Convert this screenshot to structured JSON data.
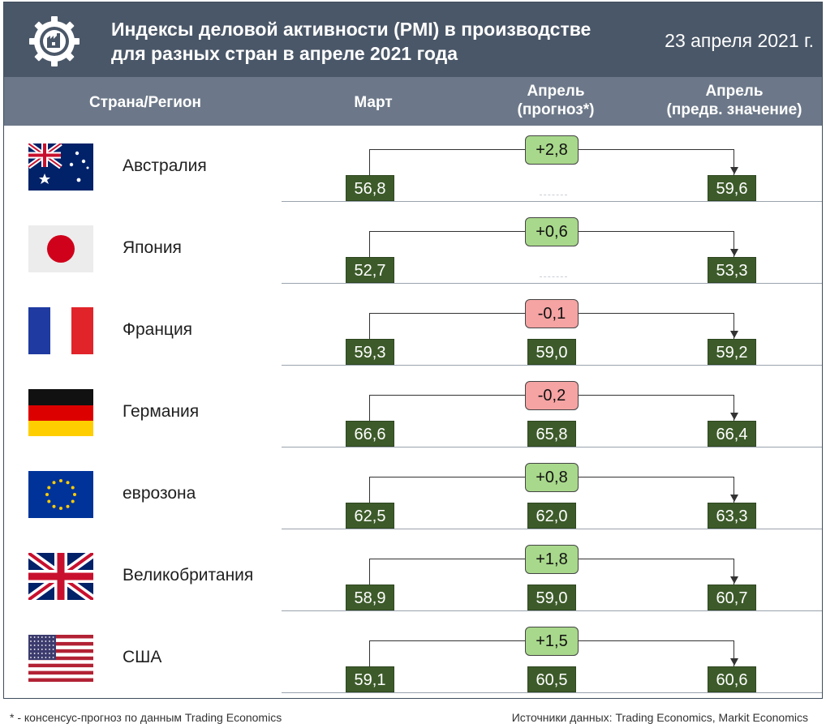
{
  "header": {
    "title_line1": "Индексы деловой активности (PMI) в производстве",
    "title_line2": "для разных стран в апреле 2021 года",
    "date": "23 апреля 2021 г."
  },
  "columns": {
    "country": "Страна/Регион",
    "march": "Март",
    "forecast_line1": "Апрель",
    "forecast_line2": "(прогноз*)",
    "april_line1": "Апрель",
    "april_line2": "(предв. значение)"
  },
  "colors": {
    "header_bg": "#4a5768",
    "colhead_bg": "#6c7889",
    "value_bg": "#3d5b2a",
    "delta_positive": "#a8d88b",
    "delta_negative": "#f5a3a3"
  },
  "chart_data": {
    "type": "table",
    "title": "Индексы деловой активности (PMI) в производстве для разных стран в апреле 2021 года",
    "rows": [
      {
        "country": "Австралия",
        "flag": "australia-flag",
        "march": "56,8",
        "forecast": "",
        "april": "59,6",
        "delta": "+2,8",
        "sign": "pos"
      },
      {
        "country": "Япония",
        "flag": "japan-flag",
        "march": "52,7",
        "forecast": "",
        "april": "53,3",
        "delta": "+0,6",
        "sign": "pos"
      },
      {
        "country": "Франция",
        "flag": "france-flag",
        "march": "59,3",
        "forecast": "59,0",
        "april": "59,2",
        "delta": "-0,1",
        "sign": "neg"
      },
      {
        "country": "Германия",
        "flag": "germany-flag",
        "march": "66,6",
        "forecast": "65,8",
        "april": "66,4",
        "delta": "-0,2",
        "sign": "neg"
      },
      {
        "country": "еврозона",
        "flag": "eu-flag",
        "march": "62,5",
        "forecast": "62,0",
        "april": "63,3",
        "delta": "+0,8",
        "sign": "pos"
      },
      {
        "country": "Великобритания",
        "flag": "uk-flag",
        "march": "58,9",
        "forecast": "59,0",
        "april": "60,7",
        "delta": "+1,8",
        "sign": "pos"
      },
      {
        "country": "США",
        "flag": "usa-flag",
        "march": "59,1",
        "forecast": "60,5",
        "april": "60,6",
        "delta": "+1,5",
        "sign": "pos"
      }
    ]
  },
  "footer": {
    "footnote": "* - консенсус-прогноз по данным Trading Economics",
    "sources": "Источники данных: Trading Economics, Markit Economics"
  }
}
